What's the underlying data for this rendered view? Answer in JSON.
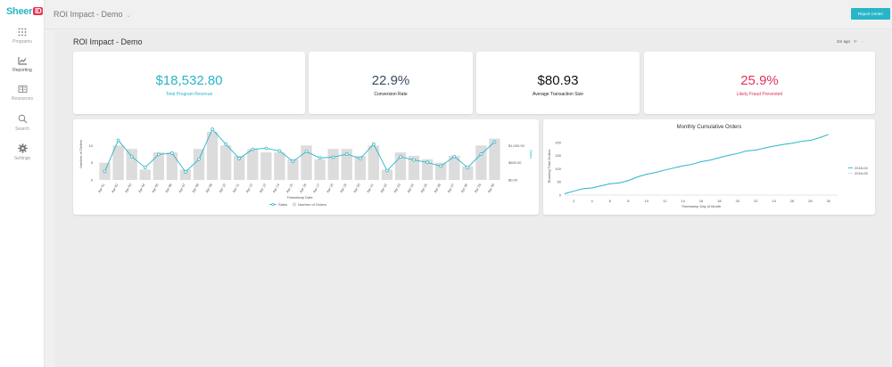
{
  "app": {
    "logo_main": "Sheer",
    "logo_badge": "ID",
    "title": "ROI Impact - Demo",
    "title_chevron": "⌄"
  },
  "sidebar": {
    "items": [
      {
        "label": "Programs",
        "icon": "grid-icon"
      },
      {
        "label": "Reporting",
        "icon": "chart-icon"
      },
      {
        "label": "Resources",
        "icon": "book-icon"
      },
      {
        "label": "Search",
        "icon": "search-icon"
      },
      {
        "label": "Settings",
        "icon": "gear-icon"
      }
    ],
    "active": "Reporting"
  },
  "header": {
    "report_center_label": "Report Center"
  },
  "dashboard": {
    "title": "ROI Impact - Demo",
    "updated": "2m ago",
    "refresh_glyph": "⟳",
    "more_glyph": "⋮"
  },
  "kpis": [
    {
      "value": "$18,532.80",
      "label": "Total Program Revenue",
      "color": "#2bb5c6"
    },
    {
      "value": "22.9%",
      "label": "Conversion Rate",
      "color": "#3a4a63"
    },
    {
      "value": "$80.93",
      "label": "Average Transaction Size",
      "color": "#111111"
    },
    {
      "value": "25.9%",
      "label": "Likely Fraud Prevented",
      "color": "#e0335a"
    }
  ],
  "colors": {
    "accent": "#28b5c8",
    "bar": "#dcdcdc",
    "fraud": "#e0335a"
  },
  "chart_data": [
    {
      "type": "bar",
      "categories": [
        "Apr 01",
        "Apr 02",
        "Apr 03",
        "Apr 04",
        "Apr 05",
        "Apr 06",
        "Apr 07",
        "Apr 08",
        "Apr 09",
        "Apr 10",
        "Apr 11",
        "Apr 12",
        "Apr 13",
        "Apr 14",
        "Apr 15",
        "Apr 16",
        "Apr 17",
        "Apr 18",
        "Apr 19",
        "Apr 20",
        "Apr 21",
        "Apr 22",
        "Apr 23",
        "Apr 24",
        "Apr 25",
        "Apr 26",
        "Apr 27",
        "Apr 28",
        "Apr 29",
        "Apr 30"
      ],
      "series": [
        {
          "name": "Number of Orders",
          "kind": "bar",
          "axis": "left",
          "values": [
            5,
            10,
            9,
            3,
            8,
            8,
            3,
            9,
            14,
            10,
            7,
            9,
            8,
            8,
            6,
            10,
            6,
            9,
            9,
            7,
            10,
            3,
            8,
            7,
            6,
            5,
            7,
            4,
            10,
            12
          ]
        },
        {
          "name": "Sales",
          "kind": "line",
          "axis": "right",
          "values": [
            250,
            1150,
            680,
            360,
            740,
            780,
            230,
            600,
            1470,
            1040,
            620,
            890,
            920,
            840,
            540,
            820,
            640,
            660,
            750,
            620,
            1040,
            270,
            670,
            580,
            510,
            400,
            680,
            360,
            750,
            1100
          ]
        }
      ],
      "xlabel": "Timestamp Date",
      "ylabel": "Number of Orders",
      "ylabel_right": "Sales",
      "ylim": [
        0,
        15
      ],
      "yticks": [
        0,
        5,
        10
      ],
      "ylim_right": [
        0,
        1500
      ],
      "yticks_right": [
        "$0.00",
        "$500.00",
        "$1,000.00"
      ],
      "yticks_right_values": [
        0,
        500,
        1000
      ],
      "grid": false,
      "legend_position": "bottom-center"
    },
    {
      "type": "line",
      "title": "Monthly Cumulative Orders",
      "xlabel": "Timestamp Day of Month",
      "ylabel": "Running Total Orders",
      "xlim": [
        1,
        31
      ],
      "xticks": [
        2,
        4,
        6,
        8,
        10,
        12,
        14,
        16,
        18,
        20,
        22,
        24,
        26,
        28,
        30
      ],
      "ylim": [
        0,
        220
      ],
      "yticks": [
        0,
        50,
        100,
        150,
        200
      ],
      "series": [
        {
          "name": "2018-04",
          "x": [
            1,
            2,
            3,
            4,
            5,
            6,
            7,
            8,
            9,
            10,
            11,
            12,
            13,
            14,
            15,
            16,
            17,
            18,
            19,
            20,
            21,
            22,
            23,
            24,
            25,
            26,
            27,
            28,
            29,
            30
          ],
          "values": [
            5,
            15,
            24,
            27,
            35,
            43,
            46,
            55,
            69,
            79,
            86,
            95,
            103,
            111,
            117,
            127,
            133,
            142,
            151,
            158,
            168,
            171,
            179,
            186,
            192,
            197,
            204,
            208,
            218,
            230
          ]
        },
        {
          "name": "2018-05",
          "x": [],
          "values": []
        }
      ],
      "grid": false,
      "legend_position": "right"
    }
  ]
}
